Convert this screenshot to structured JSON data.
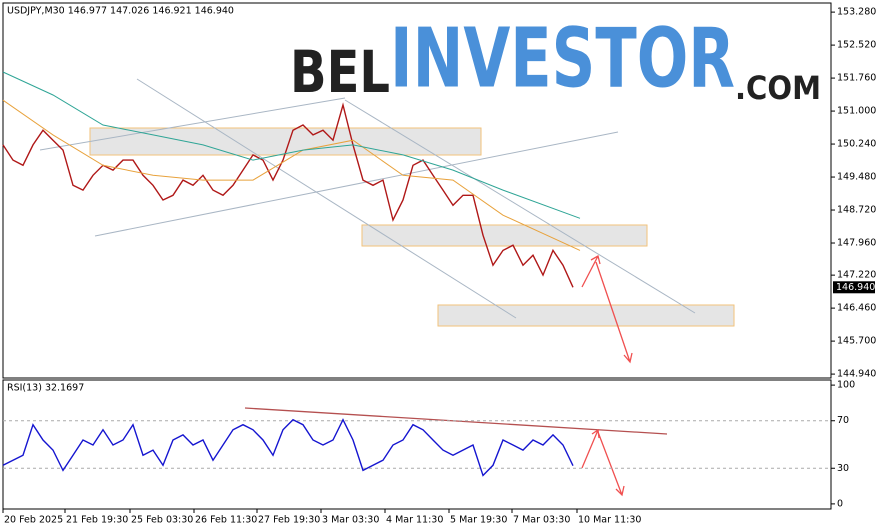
{
  "chart_data": [
    {
      "type": "line",
      "title": "USDJPY,M30 146.977 147.026 146.921 146.940",
      "xlim": [
        0,
        82.8
      ],
      "ylim": [
        144.85,
        153.49
      ],
      "yticks": [
        {
          "value": 153.28,
          "label": "153.280"
        },
        {
          "value": 152.52,
          "label": "152.520"
        },
        {
          "value": 151.76,
          "label": "151.760"
        },
        {
          "value": 151.0,
          "label": "151.000"
        },
        {
          "value": 150.24,
          "label": "150.240"
        },
        {
          "value": 149.48,
          "label": "149.480"
        },
        {
          "value": 148.72,
          "label": "148.720"
        },
        {
          "value": 147.96,
          "label": "147.960"
        },
        {
          "value": 147.22,
          "label": "147.220"
        },
        {
          "value": 146.46,
          "label": "146.460"
        },
        {
          "value": 145.7,
          "label": "145.700"
        },
        {
          "value": 144.94,
          "label": "144.940"
        }
      ],
      "current_price": {
        "value": 146.94,
        "label": "146.940"
      },
      "watermark": [
        "BEL",
        "INVESTOR",
        ".COM"
      ],
      "series": [
        {
          "color": "#b01818",
          "values": [
            150.22,
            149.87,
            149.75,
            150.22,
            150.56,
            150.33,
            150.1,
            149.29,
            149.18,
            149.52,
            149.75,
            149.64,
            149.87,
            149.87,
            149.52,
            149.29,
            148.95,
            149.06,
            149.41,
            149.29,
            149.52,
            149.18,
            149.06,
            149.29,
            149.64,
            149.99,
            149.87,
            149.41,
            149.87,
            150.56,
            150.68,
            150.45,
            150.56,
            150.33,
            151.14,
            150.22,
            149.41,
            149.29,
            149.41,
            148.49,
            148.95,
            149.75,
            149.87,
            149.52,
            149.18,
            148.83,
            149.06,
            149.06,
            148.14,
            147.45,
            147.79,
            147.91,
            147.45,
            147.68,
            147.22,
            147.79,
            147.45,
            146.94
          ]
        },
        {
          "color": "#e8a23c",
          "x": [
            0,
            5,
            10,
            15,
            20,
            25,
            30,
            35,
            40,
            45,
            50,
            57.7
          ],
          "values": [
            151.25,
            150.45,
            149.75,
            149.52,
            149.41,
            149.41,
            150.1,
            150.33,
            149.52,
            149.41,
            148.6,
            147.79
          ]
        },
        {
          "color": "#2fa596",
          "x": [
            0,
            5,
            10,
            15,
            20,
            25,
            30,
            35,
            40,
            45,
            50,
            57.7
          ],
          "values": [
            151.9,
            151.37,
            150.68,
            150.45,
            150.22,
            149.87,
            150.1,
            150.22,
            149.99,
            149.64,
            149.18,
            148.53
          ]
        }
      ]
    },
    {
      "type": "line",
      "title": "RSI(13) 32.1697",
      "xlim": [
        0,
        82.8
      ],
      "ylim": [
        -4.3,
        104.3
      ],
      "yticks": [
        100,
        70,
        30,
        0
      ],
      "levels": [
        70,
        30
      ],
      "xticks": [
        {
          "value": 0,
          "label": "20 Feb 2025"
        },
        {
          "value": 6.2,
          "label": "21 Feb 19:30"
        },
        {
          "value": 12.7,
          "label": "25 Feb 03:30"
        },
        {
          "value": 19.1,
          "label": "26 Feb 11:30"
        },
        {
          "value": 25.4,
          "label": "27 Feb 19:30"
        },
        {
          "value": 31.8,
          "label": "3 Mar 03:30"
        },
        {
          "value": 38.2,
          "label": "4 Mar 11:30"
        },
        {
          "value": 44.6,
          "label": "5 Mar 19:30"
        },
        {
          "value": 50.9,
          "label": "7 Mar 03:30"
        },
        {
          "value": 57.4,
          "label": "10 Mar 11:30"
        }
      ],
      "series": [
        {
          "color": "#1515d0",
          "values": [
            32.5,
            36.8,
            41.0,
            66.7,
            53.8,
            45.3,
            28.2,
            41.0,
            53.8,
            49.6,
            62.4,
            49.6,
            53.8,
            66.7,
            41.0,
            45.3,
            32.5,
            53.8,
            58.1,
            49.6,
            53.8,
            36.8,
            49.6,
            62.4,
            66.7,
            62.4,
            53.8,
            41.0,
            62.4,
            70.9,
            66.7,
            53.8,
            49.6,
            53.8,
            70.9,
            53.8,
            28.2,
            32.5,
            36.8,
            49.6,
            53.8,
            66.7,
            62.4,
            53.8,
            45.3,
            41.0,
            45.3,
            49.6,
            23.9,
            32.5,
            53.8,
            49.6,
            45.3,
            53.8,
            49.6,
            58.1,
            49.6,
            32.17
          ]
        }
      ]
    }
  ]
}
